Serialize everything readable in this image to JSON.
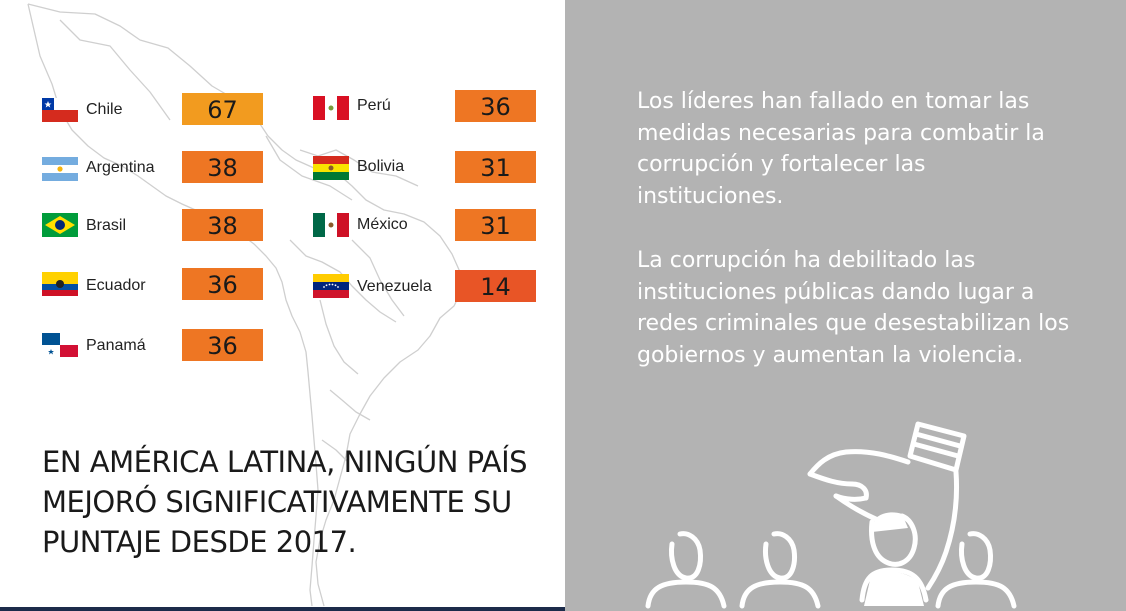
{
  "countries": [
    {
      "name": "Chile",
      "score": "67",
      "color": "#f29b1f"
    },
    {
      "name": "Argentina",
      "score": "38",
      "color": "#ee7623"
    },
    {
      "name": "Brasil",
      "score": "38",
      "color": "#ee7623"
    },
    {
      "name": "Ecuador",
      "score": "36",
      "color": "#ee7623"
    },
    {
      "name": "Panamá",
      "score": "36",
      "color": "#ee7623"
    },
    {
      "name": "Perú",
      "score": "36",
      "color": "#ee7623"
    },
    {
      "name": "Bolivia",
      "score": "31",
      "color": "#ee7623"
    },
    {
      "name": "México",
      "score": "31",
      "color": "#ee7623"
    },
    {
      "name": "Venezuela",
      "score": "14",
      "color": "#e85526"
    }
  ],
  "headline": "EN AMÉRICA LATINA, NINGÚN PAÍS MEJORÓ SIGNIFICATIVAMENTE SU PUNTAJE DESDE 2017.",
  "paragraph_1": "Los líderes han fallado en tomar las medidas necesarias para combatir la corrupción y fortalecer las instituciones.",
  "paragraph_2": "La corrupción ha debilitado las instituciones públicas dando lugar a redes criminales que desestabilizan los gobiernos y aumentan la violencia.",
  "colors": {
    "panel": "#b3b3b3",
    "rule": "#1c2b4a"
  },
  "icons": [
    "map-outline",
    "hand-ballot-icon",
    "people-icon"
  ]
}
